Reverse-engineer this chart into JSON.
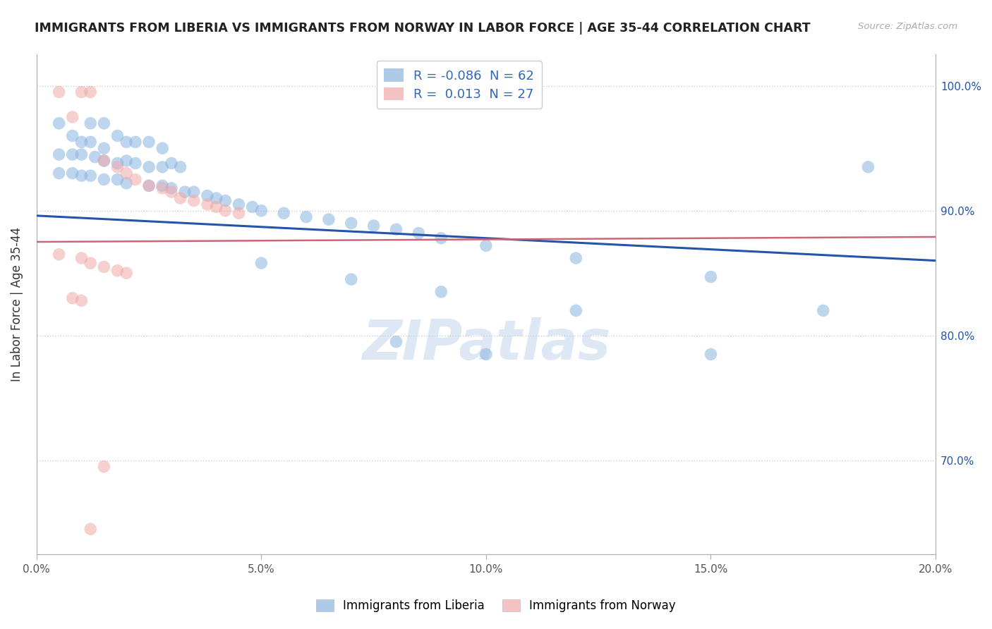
{
  "title": "IMMIGRANTS FROM LIBERIA VS IMMIGRANTS FROM NORWAY IN LABOR FORCE | AGE 35-44 CORRELATION CHART",
  "source": "Source: ZipAtlas.com",
  "ylabel": "In Labor Force | Age 35-44",
  "xlim": [
    0.0,
    0.2
  ],
  "ylim": [
    0.625,
    1.025
  ],
  "yticks": [
    0.7,
    0.8,
    0.9,
    1.0
  ],
  "ytick_labels": [
    "70.0%",
    "80.0%",
    "90.0%",
    "100.0%"
  ],
  "xticks": [
    0.0,
    0.05,
    0.1,
    0.15,
    0.2
  ],
  "xtick_labels": [
    "0.0%",
    "5.0%",
    "10.0%",
    "15.0%",
    "20.0%"
  ],
  "R_liberia": -0.086,
  "N_liberia": 62,
  "R_norway": 0.013,
  "N_norway": 27,
  "blue_color": "#8ab4e0",
  "pink_color": "#f0a8a8",
  "blue_line_color": "#2255aa",
  "pink_line_color": "#cc6677",
  "legend_label_liberia": "Immigrants from Liberia",
  "legend_label_norway": "Immigrants from Norway",
  "blue_dots": [
    [
      0.005,
      0.97
    ],
    [
      0.012,
      0.97
    ],
    [
      0.015,
      0.97
    ],
    [
      0.018,
      0.96
    ],
    [
      0.008,
      0.96
    ],
    [
      0.01,
      0.955
    ],
    [
      0.012,
      0.955
    ],
    [
      0.015,
      0.95
    ],
    [
      0.02,
      0.955
    ],
    [
      0.025,
      0.955
    ],
    [
      0.022,
      0.955
    ],
    [
      0.028,
      0.95
    ],
    [
      0.005,
      0.945
    ],
    [
      0.008,
      0.945
    ],
    [
      0.01,
      0.945
    ],
    [
      0.013,
      0.943
    ],
    [
      0.015,
      0.94
    ],
    [
      0.018,
      0.938
    ],
    [
      0.02,
      0.94
    ],
    [
      0.022,
      0.938
    ],
    [
      0.025,
      0.935
    ],
    [
      0.028,
      0.935
    ],
    [
      0.03,
      0.938
    ],
    [
      0.032,
      0.935
    ],
    [
      0.005,
      0.93
    ],
    [
      0.008,
      0.93
    ],
    [
      0.01,
      0.928
    ],
    [
      0.012,
      0.928
    ],
    [
      0.015,
      0.925
    ],
    [
      0.018,
      0.925
    ],
    [
      0.02,
      0.922
    ],
    [
      0.025,
      0.92
    ],
    [
      0.028,
      0.92
    ],
    [
      0.03,
      0.918
    ],
    [
      0.033,
      0.915
    ],
    [
      0.035,
      0.915
    ],
    [
      0.038,
      0.912
    ],
    [
      0.04,
      0.91
    ],
    [
      0.042,
      0.908
    ],
    [
      0.045,
      0.905
    ],
    [
      0.048,
      0.903
    ],
    [
      0.05,
      0.9
    ],
    [
      0.055,
      0.898
    ],
    [
      0.06,
      0.895
    ],
    [
      0.065,
      0.893
    ],
    [
      0.07,
      0.89
    ],
    [
      0.075,
      0.888
    ],
    [
      0.08,
      0.885
    ],
    [
      0.085,
      0.882
    ],
    [
      0.09,
      0.878
    ],
    [
      0.1,
      0.872
    ],
    [
      0.12,
      0.862
    ],
    [
      0.15,
      0.847
    ],
    [
      0.05,
      0.858
    ],
    [
      0.07,
      0.845
    ],
    [
      0.09,
      0.835
    ],
    [
      0.12,
      0.82
    ],
    [
      0.08,
      0.795
    ],
    [
      0.1,
      0.785
    ],
    [
      0.185,
      0.935
    ],
    [
      0.175,
      0.82
    ],
    [
      0.15,
      0.785
    ]
  ],
  "pink_dots": [
    [
      0.005,
      0.995
    ],
    [
      0.01,
      0.995
    ],
    [
      0.012,
      0.995
    ],
    [
      0.008,
      0.975
    ],
    [
      0.015,
      0.94
    ],
    [
      0.018,
      0.935
    ],
    [
      0.02,
      0.93
    ],
    [
      0.022,
      0.925
    ],
    [
      0.025,
      0.92
    ],
    [
      0.028,
      0.918
    ],
    [
      0.03,
      0.915
    ],
    [
      0.032,
      0.91
    ],
    [
      0.035,
      0.908
    ],
    [
      0.038,
      0.905
    ],
    [
      0.04,
      0.903
    ],
    [
      0.042,
      0.9
    ],
    [
      0.045,
      0.898
    ],
    [
      0.005,
      0.865
    ],
    [
      0.01,
      0.862
    ],
    [
      0.012,
      0.858
    ],
    [
      0.015,
      0.855
    ],
    [
      0.018,
      0.852
    ],
    [
      0.02,
      0.85
    ],
    [
      0.008,
      0.83
    ],
    [
      0.01,
      0.828
    ],
    [
      0.015,
      0.695
    ],
    [
      0.012,
      0.645
    ]
  ],
  "blue_trend": [
    0.0,
    0.2,
    0.896,
    0.86
  ],
  "pink_trend": [
    0.0,
    0.2,
    0.875,
    0.879
  ]
}
